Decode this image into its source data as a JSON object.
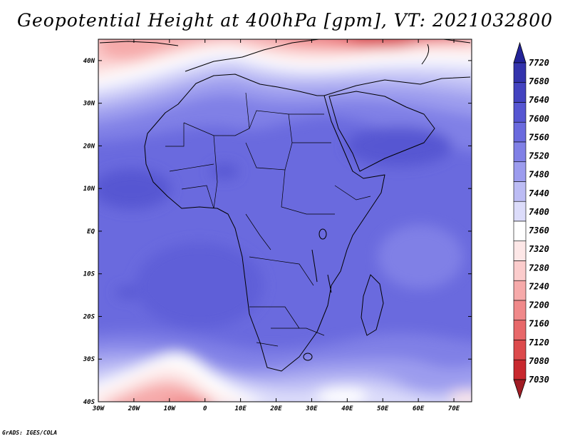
{
  "title": "Geopotential Height at 400hPa [gpm], VT: 2021032800",
  "credit": "GrADS: IGES/COLA",
  "map": {
    "projection": "latlon",
    "lon_range": [
      -30,
      75
    ],
    "lat_range": [
      -40,
      45
    ],
    "x_ticks": [
      "30W",
      "20W",
      "10W",
      "0",
      "10E",
      "20E",
      "30E",
      "40E",
      "50E",
      "60E",
      "70E"
    ],
    "y_ticks": [
      "40S",
      "30S",
      "20S",
      "10S",
      "EQ",
      "10N",
      "20N",
      "30N",
      "40N"
    ]
  },
  "colorbar": {
    "levels": [
      "7030",
      "7080",
      "7120",
      "7160",
      "7200",
      "7240",
      "7280",
      "7320",
      "7360",
      "7400",
      "7440",
      "7480",
      "7520",
      "7560",
      "7600",
      "7640",
      "7680",
      "7720"
    ],
    "colors": [
      "#a01c24",
      "#c8282e",
      "#dc4a4c",
      "#e8686a",
      "#f0898a",
      "#f6aaaa",
      "#fbcccc",
      "#fde7e7",
      "#ffffff",
      "#dcdcfa",
      "#bcbcf4",
      "#9c9cee",
      "#8080e6",
      "#6a6ade",
      "#5656d2",
      "#4343c0",
      "#3333ac",
      "#232398"
    ],
    "extends": "both"
  }
}
